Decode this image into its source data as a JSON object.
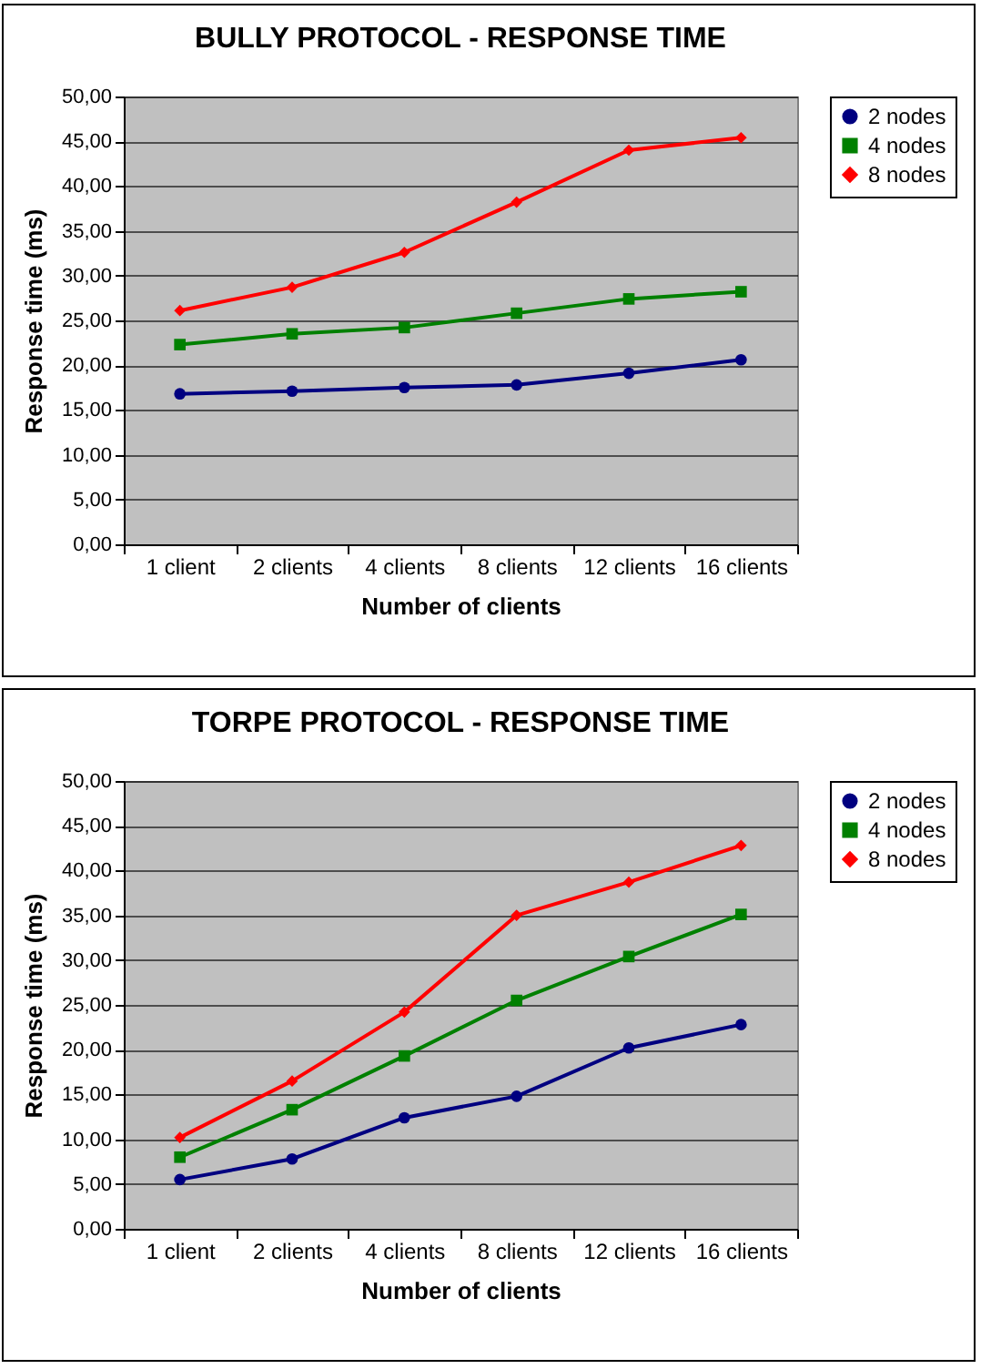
{
  "chart_data": [
    {
      "type": "line",
      "title": "BULLY PROTOCOL - RESPONSE TIME",
      "xlabel": "Number of clients",
      "ylabel": "Response time (ms)",
      "categories": [
        "1 client",
        "2 clients",
        "4 clients",
        "8 clients",
        "12 clients",
        "16 clients"
      ],
      "series": [
        {
          "name": "2 nodes",
          "color": "#000080",
          "marker": "circle",
          "values": [
            16.8,
            17.1,
            17.5,
            17.8,
            19.1,
            20.6
          ]
        },
        {
          "name": "4 nodes",
          "color": "#008000",
          "marker": "square",
          "values": [
            22.3,
            23.5,
            24.2,
            25.8,
            27.4,
            28.2
          ]
        },
        {
          "name": "8 nodes",
          "color": "#ff0000",
          "marker": "diamond",
          "values": [
            26.1,
            28.7,
            32.6,
            38.2,
            44.0,
            45.4
          ]
        }
      ],
      "ylim": [
        0,
        50
      ],
      "yticks": [
        {
          "value": 0,
          "label": "0,00"
        },
        {
          "value": 5,
          "label": "5,00"
        },
        {
          "value": 10,
          "label": "10,00"
        },
        {
          "value": 15,
          "label": "15,00"
        },
        {
          "value": 20,
          "label": "20,00"
        },
        {
          "value": 25,
          "label": "25,00"
        },
        {
          "value": 30,
          "label": "30,00"
        },
        {
          "value": 35,
          "label": "35,00"
        },
        {
          "value": 40,
          "label": "40,00"
        },
        {
          "value": 45,
          "label": "45,00"
        },
        {
          "value": 50,
          "label": "50,00"
        }
      ],
      "grid": "y",
      "legend": "right",
      "line_style": "solid"
    },
    {
      "type": "line",
      "title": "TORPE PROTOCOL - RESPONSE TIME",
      "xlabel": "Number of clients",
      "ylabel": "Response time (ms)",
      "categories": [
        "1 client",
        "2 clients",
        "4 clients",
        "8 clients",
        "12 clients",
        "16 clients"
      ],
      "series": [
        {
          "name": "2 nodes",
          "color": "#000080",
          "marker": "circle",
          "values": [
            5.5,
            7.8,
            12.4,
            14.8,
            20.2,
            22.8
          ]
        },
        {
          "name": "4 nodes",
          "color": "#008000",
          "marker": "square",
          "values": [
            8.0,
            13.3,
            19.3,
            25.5,
            30.4,
            35.1
          ]
        },
        {
          "name": "8 nodes",
          "color": "#ff0000",
          "marker": "diamond",
          "values": [
            10.2,
            16.5,
            24.2,
            35.0,
            38.7,
            42.8
          ]
        }
      ],
      "ylim": [
        0,
        50
      ],
      "yticks": [
        {
          "value": 0,
          "label": "0,00"
        },
        {
          "value": 5,
          "label": "5,00"
        },
        {
          "value": 10,
          "label": "10,00"
        },
        {
          "value": 15,
          "label": "15,00"
        },
        {
          "value": 20,
          "label": "20,00"
        },
        {
          "value": 25,
          "label": "25,00"
        },
        {
          "value": 30,
          "label": "30,00"
        },
        {
          "value": 35,
          "label": "35,00"
        },
        {
          "value": 40,
          "label": "40,00"
        },
        {
          "value": 45,
          "label": "45,00"
        },
        {
          "value": 50,
          "label": "50,00"
        }
      ],
      "grid": "y",
      "legend": "right",
      "line_style": "solid"
    }
  ]
}
